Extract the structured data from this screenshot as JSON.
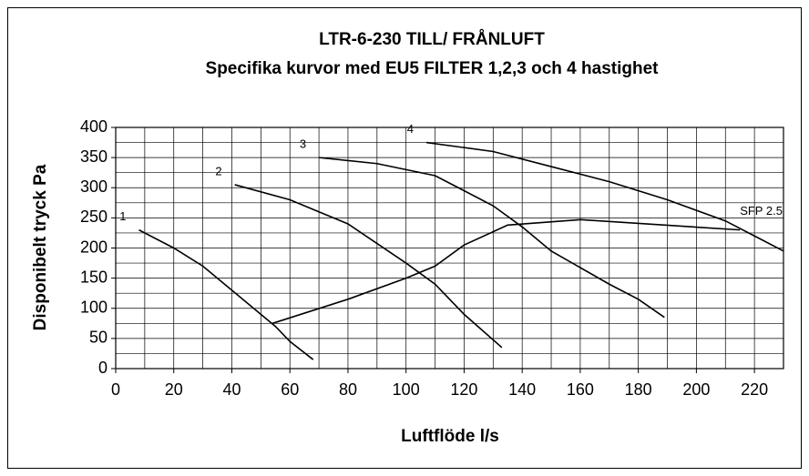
{
  "chart_data": {
    "type": "line",
    "title": "LTR-6-230 TILL/ FRÅNLUFT",
    "subtitle": "Specifika kurvor med EU5 FILTER 1,2,3 och 4 hastighet",
    "x_label": "Luftflöde l/s",
    "y_label": "Disponibelt tryck Pa",
    "xlim": [
      0,
      230
    ],
    "ylim": [
      0,
      400
    ],
    "xticks": [
      0,
      20,
      40,
      60,
      80,
      100,
      120,
      140,
      160,
      180,
      200,
      220
    ],
    "x_gridlines": [
      0,
      10,
      20,
      30,
      40,
      50,
      60,
      70,
      80,
      90,
      100,
      110,
      120,
      130,
      140,
      150,
      160,
      170,
      180,
      190,
      200,
      210,
      220,
      230
    ],
    "yticks": [
      0,
      50,
      100,
      150,
      200,
      250,
      300,
      350,
      400
    ],
    "y_gridlines": [
      0,
      25,
      50,
      75,
      100,
      125,
      150,
      175,
      200,
      225,
      250,
      275,
      300,
      325,
      350,
      375,
      400
    ],
    "grid": true,
    "series": [
      {
        "name": "1",
        "color": "#000000",
        "x": [
          8,
          20,
          30,
          40,
          50,
          55,
          60,
          68
        ],
        "values": [
          230,
          200,
          170,
          130,
          90,
          70,
          45,
          15
        ]
      },
      {
        "name": "2",
        "color": "#000000",
        "x": [
          41,
          60,
          80,
          100,
          110,
          120,
          133
        ],
        "values": [
          305,
          280,
          240,
          175,
          140,
          90,
          35
        ]
      },
      {
        "name": "3",
        "color": "#000000",
        "x": [
          70,
          90,
          110,
          130,
          140,
          150,
          170,
          180,
          189
        ],
        "values": [
          350,
          340,
          320,
          270,
          235,
          195,
          140,
          115,
          85
        ]
      },
      {
        "name": "4",
        "color": "#000000",
        "x": [
          107,
          130,
          150,
          170,
          190,
          210,
          220,
          230
        ],
        "values": [
          375,
          360,
          335,
          310,
          280,
          245,
          220,
          195
        ]
      },
      {
        "name": "SFP 2.5",
        "color": "#000000",
        "x": [
          54,
          80,
          100,
          110,
          120,
          135,
          160,
          215
        ],
        "values": [
          75,
          115,
          150,
          170,
          205,
          238,
          247,
          230
        ]
      }
    ]
  }
}
